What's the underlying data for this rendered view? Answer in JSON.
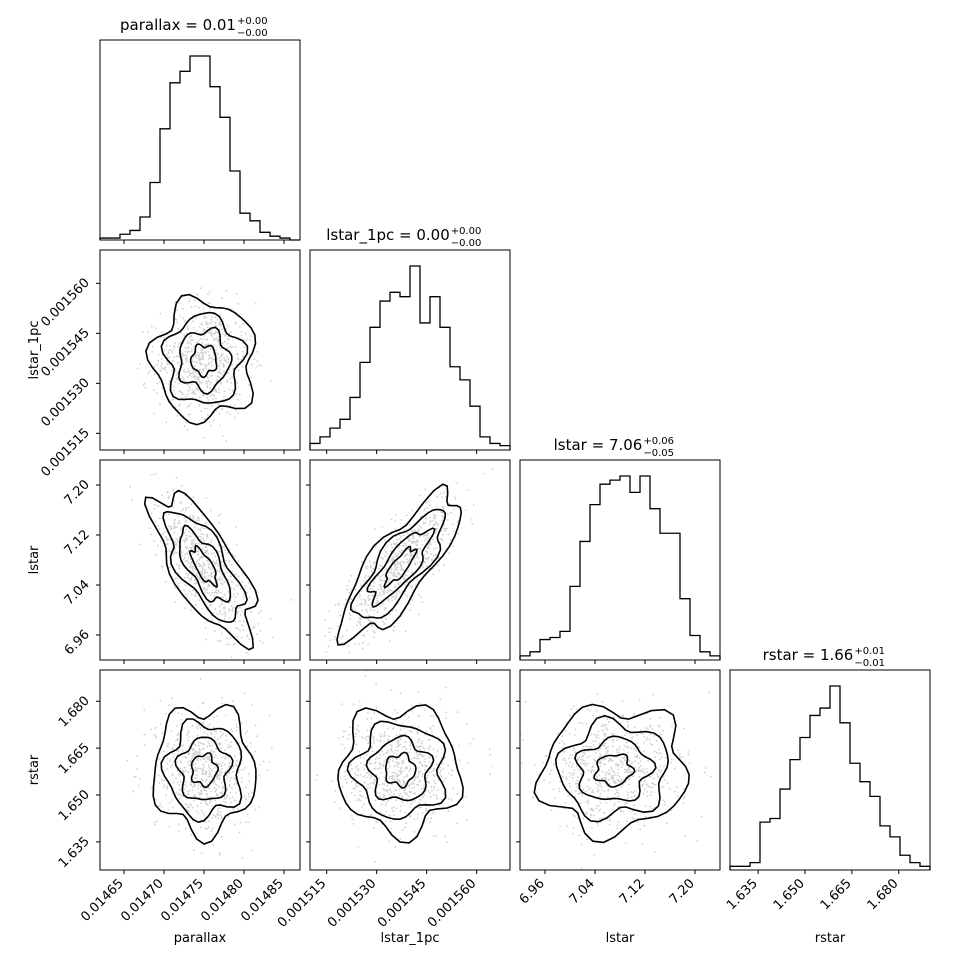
{
  "chart_data": {
    "type": "corner",
    "parameters": [
      {
        "key": "parallax",
        "label": "parallax",
        "range": [
          0.01462,
          0.01487
        ],
        "ticks": [
          "0.01465",
          "0.01470",
          "0.01475",
          "0.01480",
          "0.01485"
        ],
        "title": {
          "text": "parallax = 0.01",
          "plus": "+0.00",
          "minus": "−0.00"
        },
        "hist": [
          1,
          1,
          3,
          5,
          12,
          30,
          58,
          82,
          88,
          96,
          96,
          80,
          64,
          36,
          14,
          10,
          4,
          2,
          1,
          0
        ]
      },
      {
        "key": "lstar_1pc",
        "label": "lstar_1pc",
        "range": [
          0.00151,
          0.00157
        ],
        "ticks": [
          "0.001515",
          "0.001530",
          "0.001545",
          "0.001560"
        ],
        "title": {
          "text": "lstar_1pc = 0.00",
          "plus": "+0.00",
          "minus": "−0.00"
        },
        "hist": [
          3,
          6,
          10,
          14,
          24,
          40,
          56,
          68,
          72,
          70,
          84,
          58,
          70,
          56,
          38,
          32,
          20,
          6,
          3,
          2
        ]
      },
      {
        "key": "lstar",
        "label": "lstar",
        "range": [
          6.92,
          7.24
        ],
        "ticks": [
          "6.96",
          "7.04",
          "7.12",
          "7.20"
        ],
        "title": {
          "text": "lstar = 7.06",
          "plus": "+0.06",
          "minus": "−0.05"
        },
        "hist": [
          2,
          4,
          10,
          11,
          14,
          36,
          58,
          76,
          86,
          88,
          90,
          82,
          90,
          74,
          62,
          62,
          30,
          12,
          4,
          2
        ]
      },
      {
        "key": "rstar",
        "label": "rstar",
        "range": [
          1.626,
          1.69
        ],
        "ticks": [
          "1.635",
          "1.650",
          "1.665",
          "1.680"
        ],
        "title": {
          "text": "rstar = 1.66",
          "plus": "+0.01",
          "minus": "−0.01"
        },
        "hist": [
          2,
          2,
          4,
          26,
          28,
          44,
          60,
          72,
          84,
          88,
          100,
          80,
          58,
          48,
          40,
          24,
          18,
          8,
          4,
          2
        ]
      }
    ],
    "pairs": [
      {
        "x": "parallax",
        "y": "lstar_1pc",
        "center": [
          0.01475,
          0.001537
        ],
        "sd": [
          3e-05,
          8.5e-06
        ],
        "rho": 0.0
      },
      {
        "x": "parallax",
        "y": "lstar",
        "center": [
          0.01475,
          7.07
        ],
        "sd": [
          3e-05,
          0.055
        ],
        "rho": -0.7
      },
      {
        "x": "lstar_1pc",
        "y": "lstar",
        "center": [
          0.001537,
          7.07
        ],
        "sd": [
          8.5e-06,
          0.055
        ],
        "rho": 0.8
      },
      {
        "x": "parallax",
        "y": "rstar",
        "center": [
          0.01475,
          1.658
        ],
        "sd": [
          3e-05,
          0.0095
        ],
        "rho": 0.0
      },
      {
        "x": "lstar_1pc",
        "y": "rstar",
        "center": [
          0.001537,
          1.658
        ],
        "sd": [
          8.5e-06,
          0.0095
        ],
        "rho": 0.0
      },
      {
        "x": "lstar",
        "y": "rstar",
        "center": [
          7.07,
          1.658
        ],
        "sd": [
          0.055,
          0.0095
        ],
        "rho": 0.05
      }
    ],
    "style": {
      "line_color": "#000000",
      "fill_colors": [
        "#f2f2f2",
        "#cfcfcf",
        "#a7a7a7",
        "#6e6e6e"
      ],
      "point_color": "#d0d0d0"
    }
  }
}
